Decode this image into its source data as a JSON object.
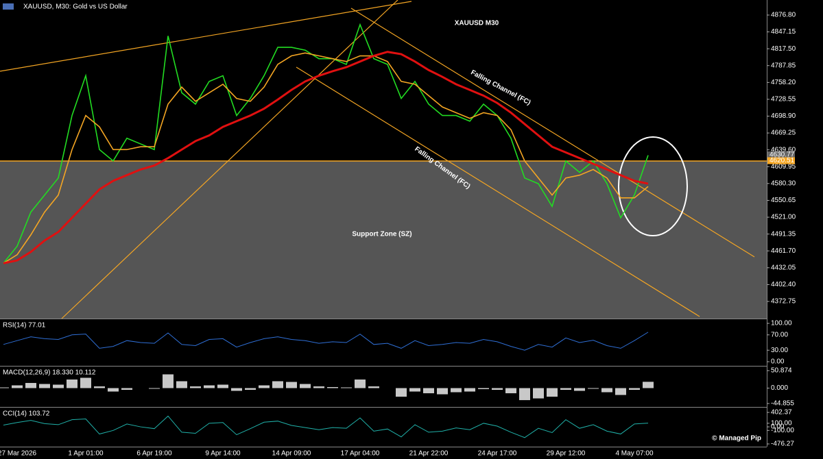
{
  "header": "XAUUSD, M30:  Gold vs US Dollar",
  "chart_data": [
    {
      "type": "line",
      "title": "XAUUSD M30",
      "annotations": [
        "Falling Channel (FC)",
        "Falling Channel (FC)",
        "Support Zone (SZ)",
        "© Managed Pip"
      ],
      "categories": [
        null,
        "27 Mar 2026",
        null,
        null,
        null,
        null,
        "1 Apr 01:00",
        null,
        null,
        null,
        null,
        "6 Apr 19:00",
        null,
        null,
        null,
        null,
        "9 Apr 14:00",
        null,
        null,
        null,
        null,
        "14 Apr 09:00",
        null,
        null,
        null,
        null,
        "17 Apr 04:00",
        null,
        null,
        null,
        null,
        "21 Apr 22:00",
        null,
        null,
        null,
        null,
        "24 Apr 17:00",
        null,
        null,
        null,
        null,
        "29 Apr 12:00",
        null,
        null,
        null,
        null,
        "4 May 07:00",
        null
      ],
      "series": [
        {
          "color": "#22dd22",
          "values": [
            4440,
            4470,
            4530,
            4560,
            4590,
            4700,
            4770,
            4640,
            4620,
            4660,
            4650,
            4640,
            4840,
            4740,
            4720,
            4760,
            4770,
            4700,
            4730,
            4770,
            4820,
            4820,
            4815,
            4800,
            4800,
            4790,
            4860,
            4800,
            4790,
            4730,
            4760,
            4720,
            4700,
            4700,
            4690,
            4720,
            4700,
            4660,
            4590,
            4580,
            4540,
            4620,
            4600,
            4620,
            4580,
            4520,
            4560,
            4630
          ]
        },
        {
          "color": "#f5a623",
          "values": [
            4440,
            4455,
            4490,
            4530,
            4560,
            4640,
            4700,
            4680,
            4640,
            4640,
            4645,
            4645,
            4720,
            4750,
            4725,
            4740,
            4755,
            4730,
            4725,
            4750,
            4790,
            4805,
            4810,
            4805,
            4800,
            4795,
            4805,
            4805,
            4795,
            4760,
            4755,
            4735,
            4715,
            4705,
            4695,
            4705,
            4700,
            4675,
            4620,
            4590,
            4560,
            4590,
            4595,
            4605,
            4590,
            4555,
            4555,
            4575
          ]
        },
        {
          "color": "#e01010",
          "values": [
            4440,
            4445,
            4460,
            4480,
            4495,
            4520,
            4545,
            4570,
            4585,
            4595,
            4605,
            4612,
            4625,
            4640,
            4655,
            4665,
            4680,
            4690,
            4700,
            4712,
            4728,
            4745,
            4760,
            4770,
            4778,
            4785,
            4795,
            4805,
            4812,
            4808,
            4795,
            4780,
            4768,
            4755,
            4745,
            4735,
            4722,
            4705,
            4685,
            4665,
            4645,
            4635,
            4625,
            4615,
            4605,
            4595,
            4585,
            4580
          ]
        }
      ],
      "price_levels": [
        4630.77,
        4620.51
      ],
      "price_level_colors": [
        "#666666",
        "#f5a623"
      ],
      "ylim": [
        4342.6,
        4903.3
      ],
      "yticks": [
        {
          "value": 4876.8,
          "label": "4876.80"
        },
        4847.15,
        {
          "value": 4817.5,
          "label": "4817.50"
        },
        4787.85,
        {
          "value": 4758.2,
          "label": "4758.20"
        },
        4728.55,
        {
          "value": 4698.9,
          "label": "4698.90"
        },
        4669.25,
        {
          "value": 4639.6,
          "label": "4639.60"
        },
        4609.95,
        {
          "value": 4580.3,
          "label": "4580.30"
        },
        4550.65,
        {
          "value": 4521,
          "label": "4521.00"
        },
        4491.35,
        {
          "value": 4461.7,
          "label": "4461.70"
        },
        4432.05,
        {
          "value": 4402.4,
          "label": "4402.40"
        },
        4372.75
      ]
    },
    {
      "type": "line",
      "title": "RSI(14) 77.01",
      "series": [
        {
          "color": "#2f6fd6",
          "values": [
            45,
            55,
            65,
            60,
            58,
            70,
            72,
            35,
            40,
            55,
            50,
            48,
            75,
            45,
            42,
            58,
            60,
            38,
            50,
            60,
            65,
            58,
            55,
            48,
            52,
            50,
            72,
            45,
            48,
            35,
            55,
            42,
            45,
            50,
            48,
            58,
            52,
            40,
            30,
            45,
            38,
            62,
            50,
            56,
            42,
            35,
            55,
            77.01
          ]
        }
      ],
      "ylim": [
        -8.9,
        108.9
      ],
      "yticks": [
        {
          "value": 100,
          "label": "100.00"
        },
        {
          "value": 70,
          "label": "70.00"
        },
        {
          "value": 30,
          "label": "30.00"
        },
        {
          "value": 0,
          "label": "0.00"
        }
      ]
    },
    {
      "type": "bar",
      "title": "MACD(12,26,9) 18.330 10.112",
      "series": [
        {
          "color": "#c8c8c8",
          "values": [
            2,
            8,
            15,
            12,
            10,
            25,
            30,
            5,
            -10,
            -5,
            0,
            -2,
            40,
            20,
            5,
            8,
            10,
            -8,
            -5,
            8,
            20,
            18,
            12,
            5,
            3,
            2,
            25,
            5,
            0,
            -25,
            -10,
            -15,
            -18,
            -12,
            -10,
            -3,
            -5,
            -15,
            -35,
            -30,
            -25,
            -5,
            -8,
            -2,
            -12,
            -20,
            -5,
            18.33
          ]
        }
      ],
      "ylim": [
        -52.83,
        60.84
      ],
      "yticks": [
        50.874,
        {
          "value": 0,
          "label": "0.000"
        },
        -44.855
      ]
    },
    {
      "type": "line",
      "title": "CCI(14) 103.72",
      "series": [
        {
          "color": "#20b2aa",
          "values": [
            50,
            120,
            180,
            90,
            60,
            200,
            220,
            -200,
            -100,
            80,
            0,
            -50,
            300,
            -150,
            -180,
            100,
            120,
            -220,
            -50,
            130,
            160,
            40,
            -20,
            -80,
            -20,
            -40,
            250,
            -120,
            -60,
            -280,
            60,
            -150,
            -120,
            -30,
            -80,
            100,
            20,
            -150,
            -300,
            -40,
            -160,
            200,
            -40,
            60,
            -120,
            -200,
            80,
            103.72
          ]
        }
      ],
      "ylim": [
        -552.7,
        517
      ],
      "yticks": [
        402.37,
        {
          "value": 100,
          "label": "100.00"
        },
        {
          "value": 0,
          "label": "0.00"
        },
        {
          "value": -100,
          "label": "-100.00"
        },
        -476.27
      ]
    }
  ]
}
